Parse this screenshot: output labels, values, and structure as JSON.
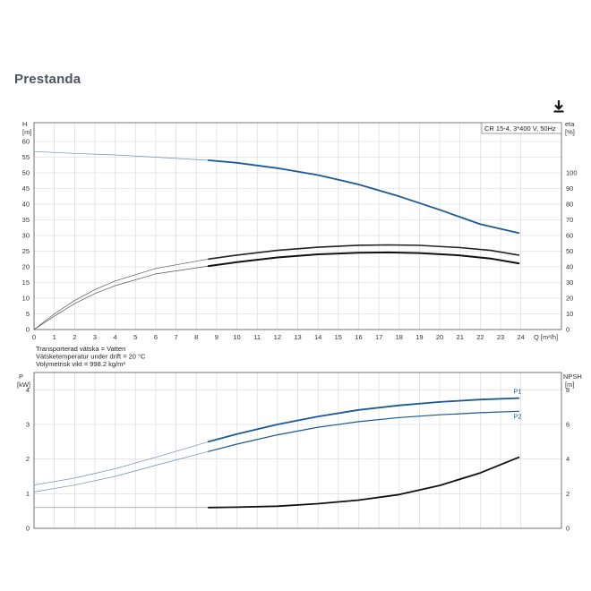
{
  "page": {
    "title": "Prestanda",
    "download_icon": "download-arrow-icon"
  },
  "chart_data": [
    {
      "type": "line",
      "name": "performance-chart",
      "legend_box": "CR 15-4, 3*400 V, 50Hz",
      "x_axis": {
        "label": "Q [m³/h]",
        "ticks": [
          0,
          1,
          2,
          3,
          4,
          5,
          6,
          7,
          8,
          9,
          10,
          11,
          12,
          13,
          14,
          15,
          16,
          17,
          18,
          19,
          20,
          21,
          22,
          23,
          24
        ],
        "range": [
          0,
          26
        ]
      },
      "y_left": {
        "label_top": "H",
        "label_unit": "[m]",
        "ticks": [
          0,
          5,
          10,
          15,
          20,
          25,
          30,
          35,
          40,
          45,
          50,
          55,
          60
        ],
        "range": [
          0,
          66
        ]
      },
      "y_right": {
        "label_top": "eta",
        "label_unit": "[%]",
        "ticks": [
          0,
          10,
          20,
          30,
          40,
          50,
          60,
          70,
          80,
          90,
          100
        ],
        "range": [
          0,
          132
        ]
      },
      "grid": true,
      "info_lines": [
        "Transporterad vätska = Vatten",
        "Vätsketemperatur under drift = 20 °C",
        "Volymetrisk vikt = 998.2 kg/m³"
      ],
      "series": [
        {
          "axis": "left",
          "color": "#1a5a96",
          "x": [
            0,
            2,
            4,
            6,
            8.6,
            10,
            12,
            14,
            16,
            18,
            20,
            22,
            23.9
          ],
          "y": [
            56.8,
            56.2,
            55.7,
            55.0,
            54.0,
            53.2,
            51.5,
            49.3,
            46.3,
            42.5,
            38.2,
            33.6,
            30.8
          ]
        },
        {
          "axis": "right",
          "x": [
            0,
            1,
            2,
            3,
            4,
            6,
            8.6,
            10,
            12,
            14,
            16,
            17.5,
            19,
            21,
            22.5,
            23.9
          ],
          "y": [
            0,
            10,
            18.5,
            25.5,
            31,
            39,
            45,
            47.5,
            50.5,
            52.5,
            53.8,
            54,
            53.7,
            52.3,
            50.5,
            47.5
          ]
        },
        {
          "axis": "right",
          "x": [
            0,
            1,
            2,
            3,
            4,
            6,
            8.6,
            10,
            12,
            14,
            16,
            17.5,
            19,
            21,
            22.5,
            23.9
          ],
          "y": [
            0,
            8.5,
            16.5,
            23,
            28,
            35.5,
            40.5,
            43,
            46,
            48,
            49,
            49.2,
            48.8,
            47.3,
            45.3,
            42.2
          ]
        }
      ]
    },
    {
      "type": "line",
      "name": "power-npsh-chart",
      "y_left": {
        "label_top": "P",
        "label_unit": "[kW]",
        "ticks": [
          0,
          1,
          2,
          3,
          4
        ],
        "range": [
          0,
          4.5
        ]
      },
      "y_right": {
        "label_top": "NPSH",
        "label_unit": "[m]",
        "ticks": [
          0,
          2,
          4,
          6,
          8
        ],
        "range": [
          0,
          9
        ]
      },
      "x_range": [
        0,
        26
      ],
      "grid": true,
      "series": [
        {
          "name": "P1",
          "axis": "left",
          "color": "#1a5a96",
          "x": [
            0,
            2,
            4,
            6,
            8.6,
            10,
            12,
            14,
            16,
            18,
            20,
            22,
            23.9
          ],
          "y": [
            1.25,
            1.45,
            1.72,
            2.05,
            2.5,
            2.72,
            3.0,
            3.23,
            3.42,
            3.55,
            3.65,
            3.72,
            3.76
          ]
        },
        {
          "name": "P2",
          "axis": "left",
          "color": "#1a5a96",
          "x": [
            0,
            2,
            4,
            6,
            8.6,
            10,
            12,
            14,
            16,
            18,
            20,
            22,
            23.9
          ],
          "y": [
            1.05,
            1.25,
            1.5,
            1.82,
            2.22,
            2.43,
            2.7,
            2.92,
            3.08,
            3.2,
            3.28,
            3.34,
            3.38
          ]
        },
        {
          "axis": "right",
          "x": [
            0,
            8.6,
            10,
            12,
            14,
            16,
            18,
            20,
            22,
            23.9
          ],
          "y": [
            1.2,
            1.2,
            1.22,
            1.28,
            1.42,
            1.63,
            1.95,
            2.48,
            3.2,
            4.1
          ]
        }
      ]
    }
  ]
}
